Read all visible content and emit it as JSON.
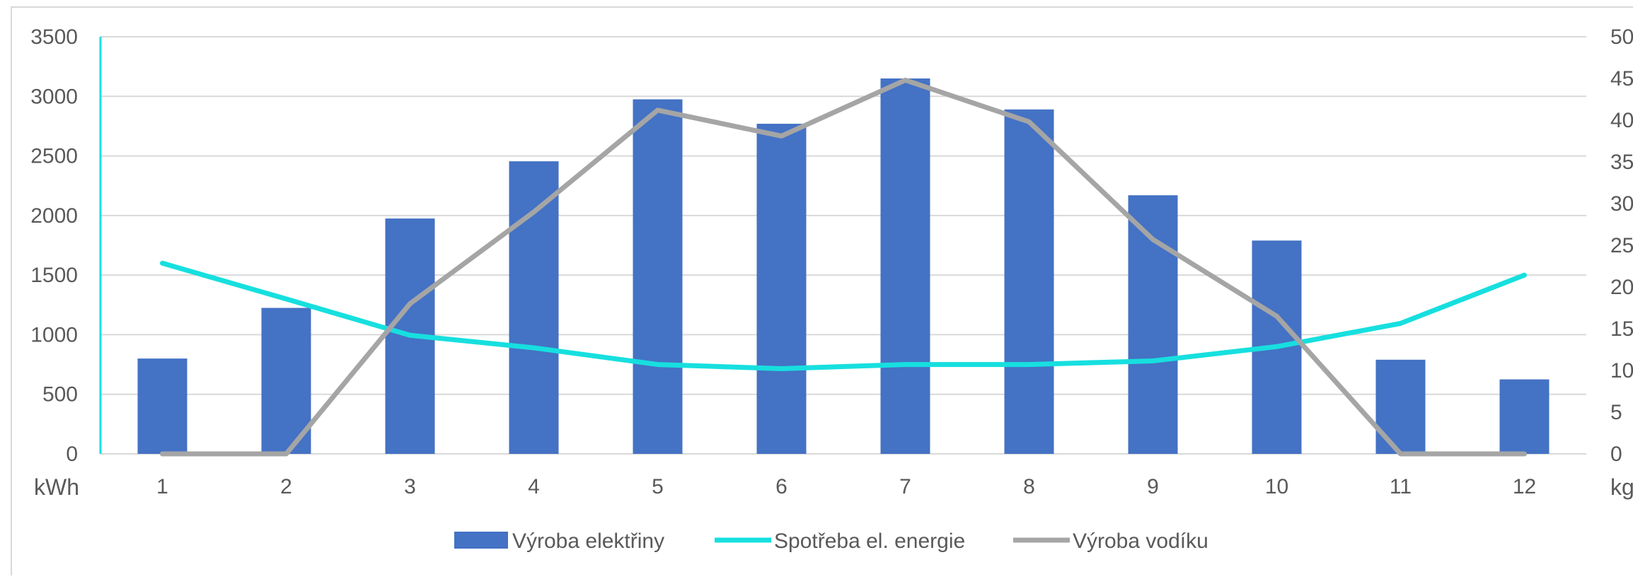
{
  "chart_data": {
    "type": "bar",
    "categories": [
      "1",
      "2",
      "3",
      "4",
      "5",
      "6",
      "7",
      "8",
      "9",
      "10",
      "11",
      "12"
    ],
    "series": [
      {
        "name": "Výroba elektřiny",
        "type": "bar",
        "axis": "left",
        "color": "#4472C4",
        "values": [
          800,
          1225,
          1975,
          2455,
          2975,
          2770,
          3150,
          2890,
          2170,
          1790,
          790,
          625
        ]
      },
      {
        "name": "Spotřeba el. energie",
        "type": "line",
        "axis": "left",
        "color": "#17DFDF",
        "values": [
          1600,
          1300,
          995,
          890,
          750,
          715,
          750,
          750,
          780,
          900,
          1095,
          1500
        ]
      },
      {
        "name": "Výroba vodíku",
        "type": "line",
        "axis": "right",
        "color": "#A5A5A5",
        "values": [
          0,
          0,
          18,
          29,
          41.2,
          38.1,
          44.8,
          39.8,
          25.7,
          16.5,
          0,
          0
        ]
      }
    ],
    "y_left": {
      "unit": "kWh",
      "ylim": [
        0,
        3500
      ],
      "ticks": [
        "0",
        "500",
        "1000",
        "1500",
        "2000",
        "2500",
        "3000",
        "3500"
      ],
      "axis_line_color": "#17DFDF"
    },
    "y_right": {
      "unit": "kg",
      "ylim": [
        0,
        50
      ],
      "ticks": [
        "0",
        "5",
        "10",
        "15",
        "20",
        "25",
        "30",
        "35",
        "40",
        "45",
        "50"
      ]
    },
    "grid": true,
    "grid_color": "#D9D9D9",
    "legend_position": "bottom"
  }
}
